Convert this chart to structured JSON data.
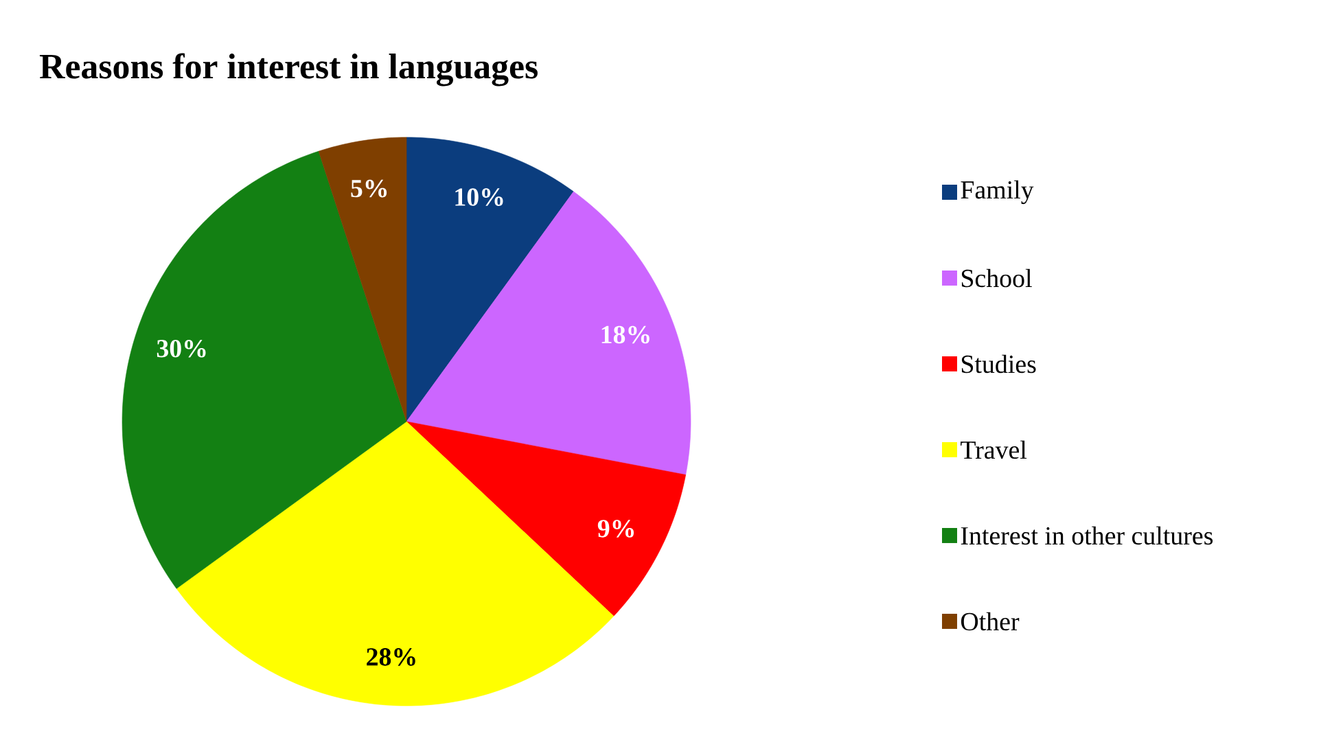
{
  "chart_data": {
    "type": "pie",
    "title": "Reasons for interest in languages",
    "categories": [
      "Family",
      "School",
      "Studies",
      "Travel",
      "Interest in other cultures",
      "Other"
    ],
    "values": [
      10,
      18,
      9,
      28,
      30,
      5
    ],
    "value_labels": [
      "10%",
      "18%",
      "9%",
      "28%",
      "30%",
      "5%"
    ],
    "colors": [
      "#0b3d7e",
      "#cc66ff",
      "#ff0000",
      "#ffff00",
      "#138013",
      "#7f3f00"
    ],
    "legend": "right"
  }
}
